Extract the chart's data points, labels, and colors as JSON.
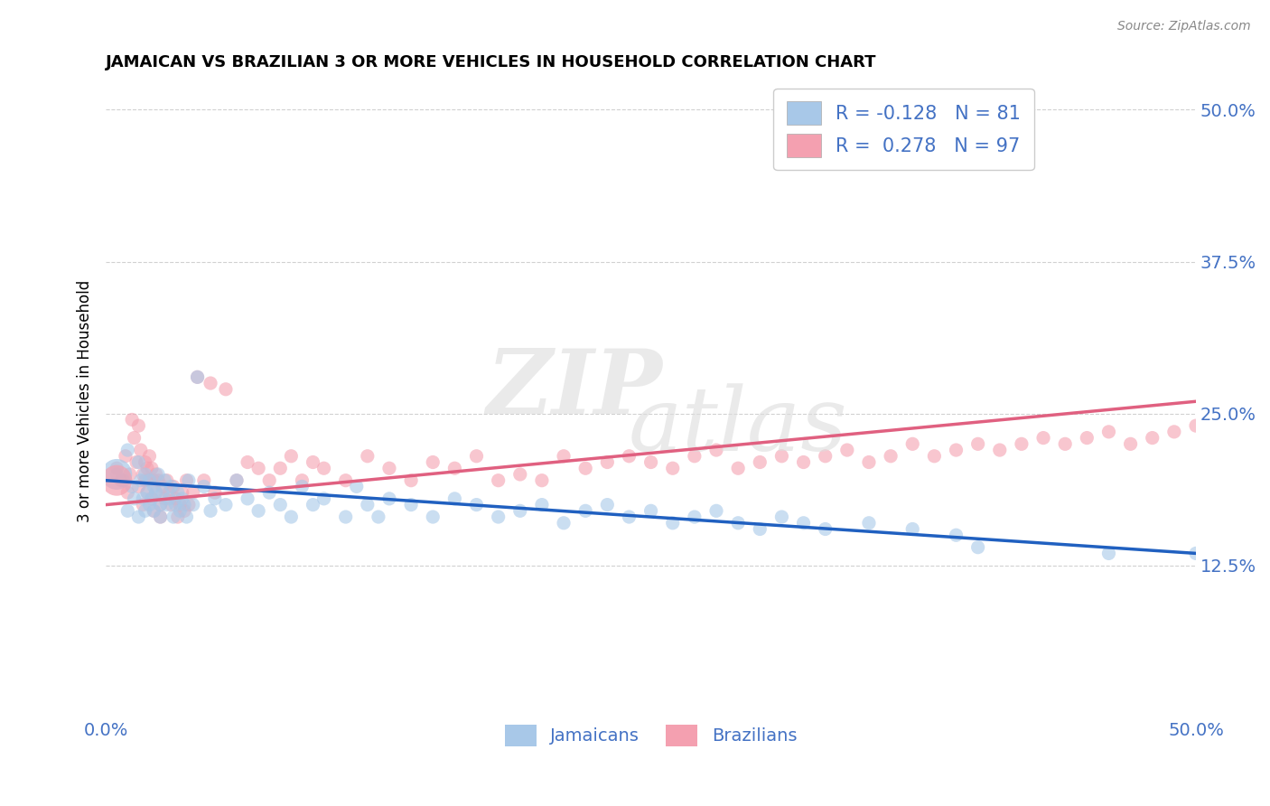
{
  "title": "JAMAICAN VS BRAZILIAN 3 OR MORE VEHICLES IN HOUSEHOLD CORRELATION CHART",
  "source_text": "Source: ZipAtlas.com",
  "ylabel": "3 or more Vehicles in Household",
  "xmin": 0.0,
  "xmax": 0.5,
  "ymin": 0.0,
  "ymax": 0.52,
  "yticks": [
    0.125,
    0.25,
    0.375,
    0.5
  ],
  "ytick_labels": [
    "12.5%",
    "25.0%",
    "37.5%",
    "50.0%"
  ],
  "xticks": [
    0.0,
    0.5
  ],
  "xtick_labels": [
    "0.0%",
    "50.0%"
  ],
  "blue_R": -0.128,
  "blue_N": 81,
  "pink_R": 0.278,
  "pink_N": 97,
  "blue_color": "#a8c8e8",
  "pink_color": "#f4a0b0",
  "blue_line_color": "#2060c0",
  "pink_line_color": "#e06080",
  "axis_color": "#4472c4",
  "legend_label_blue": "Jamaicans",
  "legend_label_pink": "Brazilians",
  "blue_scatter": [
    [
      0.005,
      0.2
    ],
    [
      0.008,
      0.195
    ],
    [
      0.01,
      0.22
    ],
    [
      0.01,
      0.17
    ],
    [
      0.012,
      0.19
    ],
    [
      0.013,
      0.18
    ],
    [
      0.015,
      0.21
    ],
    [
      0.015,
      0.165
    ],
    [
      0.016,
      0.195
    ],
    [
      0.017,
      0.18
    ],
    [
      0.018,
      0.2
    ],
    [
      0.018,
      0.17
    ],
    [
      0.019,
      0.185
    ],
    [
      0.02,
      0.195
    ],
    [
      0.02,
      0.175
    ],
    [
      0.021,
      0.18
    ],
    [
      0.022,
      0.19
    ],
    [
      0.022,
      0.17
    ],
    [
      0.023,
      0.185
    ],
    [
      0.024,
      0.2
    ],
    [
      0.025,
      0.175
    ],
    [
      0.025,
      0.165
    ],
    [
      0.026,
      0.185
    ],
    [
      0.027,
      0.195
    ],
    [
      0.028,
      0.175
    ],
    [
      0.029,
      0.18
    ],
    [
      0.03,
      0.19
    ],
    [
      0.031,
      0.165
    ],
    [
      0.032,
      0.175
    ],
    [
      0.033,
      0.185
    ],
    [
      0.034,
      0.17
    ],
    [
      0.035,
      0.18
    ],
    [
      0.036,
      0.175
    ],
    [
      0.037,
      0.165
    ],
    [
      0.038,
      0.195
    ],
    [
      0.04,
      0.175
    ],
    [
      0.042,
      0.28
    ],
    [
      0.045,
      0.19
    ],
    [
      0.048,
      0.17
    ],
    [
      0.05,
      0.18
    ],
    [
      0.055,
      0.175
    ],
    [
      0.06,
      0.195
    ],
    [
      0.065,
      0.18
    ],
    [
      0.07,
      0.17
    ],
    [
      0.075,
      0.185
    ],
    [
      0.08,
      0.175
    ],
    [
      0.085,
      0.165
    ],
    [
      0.09,
      0.19
    ],
    [
      0.095,
      0.175
    ],
    [
      0.1,
      0.18
    ],
    [
      0.11,
      0.165
    ],
    [
      0.115,
      0.19
    ],
    [
      0.12,
      0.175
    ],
    [
      0.125,
      0.165
    ],
    [
      0.13,
      0.18
    ],
    [
      0.14,
      0.175
    ],
    [
      0.15,
      0.165
    ],
    [
      0.16,
      0.18
    ],
    [
      0.17,
      0.175
    ],
    [
      0.18,
      0.165
    ],
    [
      0.19,
      0.17
    ],
    [
      0.2,
      0.175
    ],
    [
      0.21,
      0.16
    ],
    [
      0.22,
      0.17
    ],
    [
      0.23,
      0.175
    ],
    [
      0.24,
      0.165
    ],
    [
      0.25,
      0.17
    ],
    [
      0.26,
      0.16
    ],
    [
      0.27,
      0.165
    ],
    [
      0.28,
      0.17
    ],
    [
      0.29,
      0.16
    ],
    [
      0.3,
      0.155
    ],
    [
      0.31,
      0.165
    ],
    [
      0.32,
      0.16
    ],
    [
      0.33,
      0.155
    ],
    [
      0.35,
      0.16
    ],
    [
      0.37,
      0.155
    ],
    [
      0.39,
      0.15
    ],
    [
      0.4,
      0.14
    ],
    [
      0.46,
      0.135
    ],
    [
      0.5,
      0.135
    ]
  ],
  "pink_scatter": [
    [
      0.005,
      0.205
    ],
    [
      0.007,
      0.195
    ],
    [
      0.009,
      0.215
    ],
    [
      0.01,
      0.185
    ],
    [
      0.011,
      0.2
    ],
    [
      0.012,
      0.245
    ],
    [
      0.013,
      0.23
    ],
    [
      0.014,
      0.21
    ],
    [
      0.015,
      0.24
    ],
    [
      0.015,
      0.19
    ],
    [
      0.016,
      0.22
    ],
    [
      0.017,
      0.2
    ],
    [
      0.017,
      0.175
    ],
    [
      0.018,
      0.21
    ],
    [
      0.018,
      0.195
    ],
    [
      0.019,
      0.205
    ],
    [
      0.019,
      0.185
    ],
    [
      0.02,
      0.215
    ],
    [
      0.02,
      0.195
    ],
    [
      0.021,
      0.205
    ],
    [
      0.021,
      0.18
    ],
    [
      0.022,
      0.195
    ],
    [
      0.022,
      0.17
    ],
    [
      0.023,
      0.2
    ],
    [
      0.023,
      0.185
    ],
    [
      0.024,
      0.195
    ],
    [
      0.025,
      0.175
    ],
    [
      0.025,
      0.165
    ],
    [
      0.026,
      0.19
    ],
    [
      0.027,
      0.18
    ],
    [
      0.028,
      0.195
    ],
    [
      0.029,
      0.185
    ],
    [
      0.03,
      0.175
    ],
    [
      0.031,
      0.19
    ],
    [
      0.032,
      0.18
    ],
    [
      0.033,
      0.165
    ],
    [
      0.034,
      0.175
    ],
    [
      0.035,
      0.185
    ],
    [
      0.036,
      0.17
    ],
    [
      0.037,
      0.195
    ],
    [
      0.038,
      0.175
    ],
    [
      0.04,
      0.185
    ],
    [
      0.042,
      0.28
    ],
    [
      0.045,
      0.195
    ],
    [
      0.048,
      0.275
    ],
    [
      0.05,
      0.185
    ],
    [
      0.055,
      0.27
    ],
    [
      0.06,
      0.195
    ],
    [
      0.065,
      0.21
    ],
    [
      0.07,
      0.205
    ],
    [
      0.075,
      0.195
    ],
    [
      0.08,
      0.205
    ],
    [
      0.085,
      0.215
    ],
    [
      0.09,
      0.195
    ],
    [
      0.095,
      0.21
    ],
    [
      0.1,
      0.205
    ],
    [
      0.11,
      0.195
    ],
    [
      0.12,
      0.215
    ],
    [
      0.13,
      0.205
    ],
    [
      0.14,
      0.195
    ],
    [
      0.15,
      0.21
    ],
    [
      0.16,
      0.205
    ],
    [
      0.17,
      0.215
    ],
    [
      0.18,
      0.195
    ],
    [
      0.19,
      0.2
    ],
    [
      0.2,
      0.195
    ],
    [
      0.21,
      0.215
    ],
    [
      0.22,
      0.205
    ],
    [
      0.23,
      0.21
    ],
    [
      0.24,
      0.215
    ],
    [
      0.25,
      0.21
    ],
    [
      0.26,
      0.205
    ],
    [
      0.27,
      0.215
    ],
    [
      0.28,
      0.22
    ],
    [
      0.29,
      0.205
    ],
    [
      0.3,
      0.21
    ],
    [
      0.31,
      0.215
    ],
    [
      0.32,
      0.21
    ],
    [
      0.33,
      0.215
    ],
    [
      0.34,
      0.22
    ],
    [
      0.35,
      0.21
    ],
    [
      0.36,
      0.215
    ],
    [
      0.37,
      0.225
    ],
    [
      0.38,
      0.215
    ],
    [
      0.39,
      0.22
    ],
    [
      0.4,
      0.225
    ],
    [
      0.41,
      0.22
    ],
    [
      0.42,
      0.225
    ],
    [
      0.43,
      0.23
    ],
    [
      0.44,
      0.225
    ],
    [
      0.45,
      0.23
    ],
    [
      0.46,
      0.235
    ],
    [
      0.47,
      0.225
    ],
    [
      0.48,
      0.23
    ],
    [
      0.49,
      0.235
    ],
    [
      0.5,
      0.24
    ]
  ],
  "blue_large_dot": [
    0.005,
    0.2
  ],
  "pink_large_dot": [
    0.005,
    0.195
  ]
}
